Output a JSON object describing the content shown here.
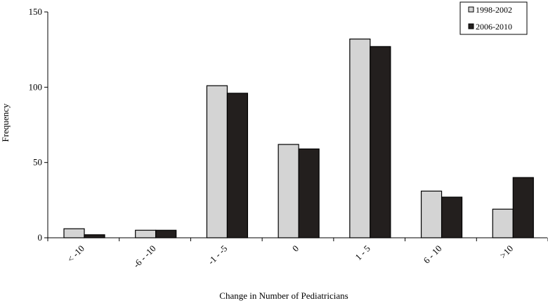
{
  "chart_data": {
    "type": "bar",
    "title": "",
    "xlabel": "Change in Number of Pediatricians",
    "ylabel": "Frequency",
    "ylim": [
      0,
      150
    ],
    "yticks": [
      "0",
      "50",
      "100",
      "150"
    ],
    "categories": [
      "< -10",
      "-6 - -10",
      "-1 - -5",
      "0",
      "1 - 5",
      "6 - 10",
      ">10"
    ],
    "series": [
      {
        "name": "1998-2002",
        "color": "#d4d4d4",
        "values": [
          6,
          5,
          101,
          62,
          132,
          31,
          19
        ]
      },
      {
        "name": "2006-2010",
        "color": "#231f1e",
        "values": [
          2,
          5,
          96,
          59,
          127,
          27,
          40
        ]
      }
    ],
    "legend_position": "top-right",
    "grid": false
  }
}
